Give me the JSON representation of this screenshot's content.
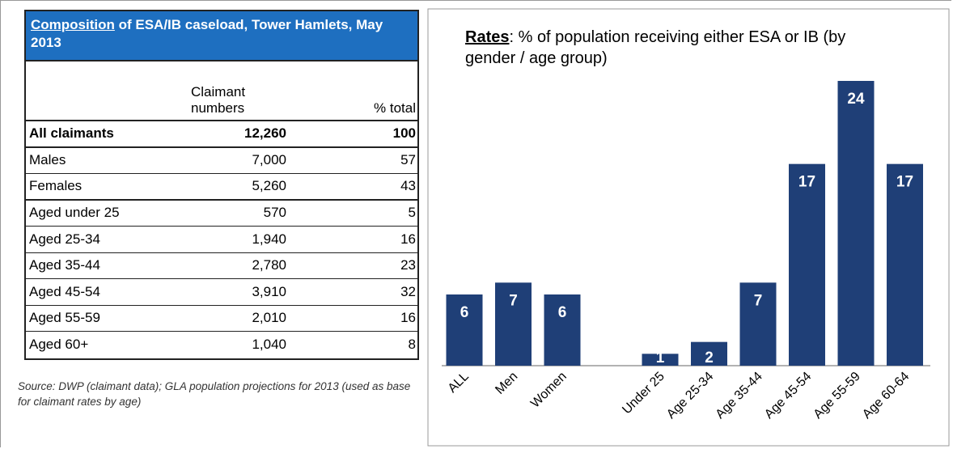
{
  "table": {
    "title_emphasis": "Composition",
    "title": " of ESA/IB caseload, Tower Hamlets, May 2013",
    "header": [
      [
        "Claimant",
        "numbers"
      ],
      [
        "% total"
      ]
    ],
    "rows": [
      [
        "All claimants",
        "12,260",
        "100"
      ],
      [
        "Males",
        "7,000",
        "57"
      ],
      [
        "Females",
        "5,260",
        "43"
      ],
      [
        "Aged under 25",
        "570",
        "5"
      ],
      [
        "Aged 25-34",
        "1,940",
        "16"
      ],
      [
        "Aged 35-44",
        "2,780",
        "23"
      ],
      [
        "Aged 45-54",
        "3,910",
        "32"
      ],
      [
        "Aged 55-59",
        "2,010",
        "16"
      ],
      [
        "Aged 60+",
        "1,040",
        "8"
      ]
    ]
  },
  "source": "Source: DWP (claimant data);  GLA population projections for 2013 (used as base for claimant rates by age)",
  "chart_data": {
    "type": "bar",
    "title_emphasis": "Rates",
    "title": ": % of population receiving either ESA or IB (by gender / age group)",
    "categories": [
      "ALL",
      "Men",
      "Women",
      null,
      "Under 25",
      "Age 25-34",
      "Age 35-44",
      "Age 45-54",
      "Age 55-59",
      "Age 60-64"
    ],
    "values": [
      6,
      7,
      6,
      null,
      1,
      2,
      7,
      17,
      24,
      17
    ],
    "color": "#1f3f77"
  }
}
